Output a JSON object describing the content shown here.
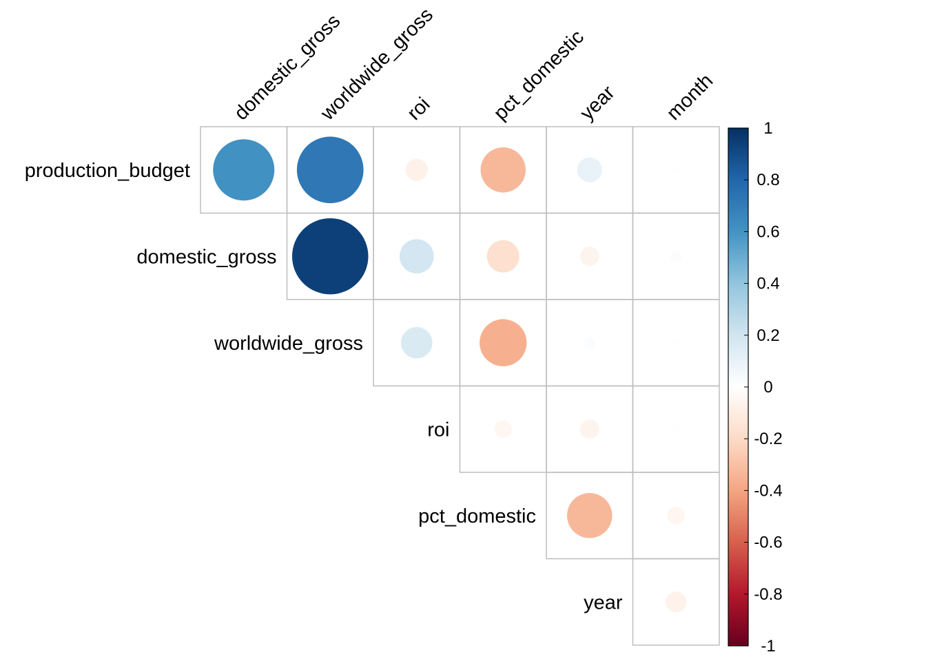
{
  "chart_data": {
    "type": "heatmap",
    "style": "upper-triangle correlation matrix, circle glyphs (size and color encode correlation)",
    "title": "",
    "columns": [
      "domestic_gross",
      "worldwide_gross",
      "roi",
      "pct_domestic",
      "year",
      "month"
    ],
    "rows": [
      "production_budget",
      "domestic_gross",
      "worldwide_gross",
      "roi",
      "pct_domestic",
      "year"
    ],
    "cells": [
      {
        "row": "production_budget",
        "col": "domestic_gross",
        "value": 0.61
      },
      {
        "row": "production_budget",
        "col": "worldwide_gross",
        "value": 0.72
      },
      {
        "row": "production_budget",
        "col": "roi",
        "value": -0.08
      },
      {
        "row": "production_budget",
        "col": "pct_domestic",
        "value": -0.33
      },
      {
        "row": "production_budget",
        "col": "year",
        "value": 0.1
      },
      {
        "row": "production_budget",
        "col": "month",
        "value": 0.01
      },
      {
        "row": "domestic_gross",
        "col": "worldwide_gross",
        "value": 0.94
      },
      {
        "row": "domestic_gross",
        "col": "roi",
        "value": 0.19
      },
      {
        "row": "domestic_gross",
        "col": "pct_domestic",
        "value": -0.17
      },
      {
        "row": "domestic_gross",
        "col": "year",
        "value": -0.06
      },
      {
        "row": "domestic_gross",
        "col": "month",
        "value": 0.02
      },
      {
        "row": "worldwide_gross",
        "col": "roi",
        "value": 0.16
      },
      {
        "row": "worldwide_gross",
        "col": "pct_domestic",
        "value": -0.36
      },
      {
        "row": "worldwide_gross",
        "col": "year",
        "value": 0.02
      },
      {
        "row": "worldwide_gross",
        "col": "month",
        "value": 0.01
      },
      {
        "row": "roi",
        "col": "pct_domestic",
        "value": -0.05
      },
      {
        "row": "roi",
        "col": "year",
        "value": -0.06
      },
      {
        "row": "roi",
        "col": "month",
        "value": 0.01
      },
      {
        "row": "pct_domestic",
        "col": "year",
        "value": -0.33
      },
      {
        "row": "pct_domestic",
        "col": "month",
        "value": -0.05
      },
      {
        "row": "year",
        "col": "month",
        "value": -0.07
      }
    ],
    "color_scale": {
      "range": [
        -1,
        1
      ],
      "ticks": [
        "1",
        "0.8",
        "0.6",
        "0.4",
        "0.2",
        "0",
        "-0.2",
        "-0.4",
        "-0.6",
        "-0.8",
        "-1"
      ],
      "colors": [
        "#67001F",
        "#B2182B",
        "#D6604D",
        "#F4A582",
        "#FDDBC7",
        "#FFFFFF",
        "#D1E5F0",
        "#92C5DE",
        "#4393C3",
        "#2166AC",
        "#053061"
      ]
    },
    "legend_position": "right",
    "grid": true,
    "grid_color": "#BEBEBE"
  }
}
